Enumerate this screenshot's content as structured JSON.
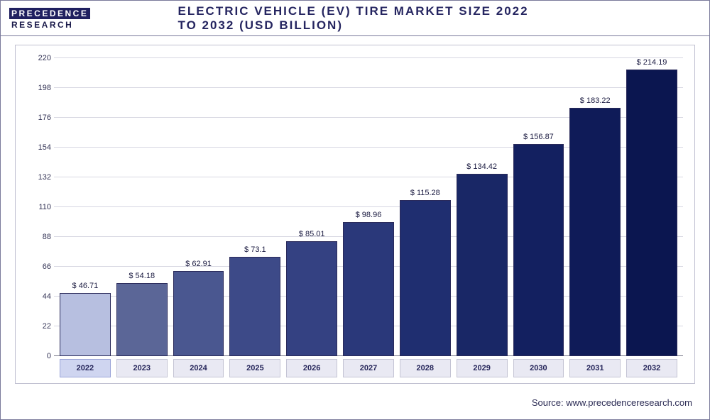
{
  "logo": {
    "line1": "PRECEDENCE",
    "line2": "RESEARCH"
  },
  "title": "ELECTRIC VEHICLE (EV) TIRE MARKET SIZE 2022 TO 2032 (USD BILLION)",
  "source": "Source: www.precedenceresearch.com",
  "chart": {
    "type": "bar",
    "ylim": [
      0,
      220
    ],
    "ytick_step": 22,
    "yticks": [
      0,
      22,
      44,
      66,
      88,
      110,
      132,
      154,
      176,
      198,
      220
    ],
    "grid_color": "#d7d7e2",
    "background_color": "#ffffff",
    "label_fontsize": 11,
    "title_fontsize": 17,
    "bar_border_color": "#2a2a5a",
    "categories": [
      "2022",
      "2023",
      "2024",
      "2025",
      "2026",
      "2027",
      "2028",
      "2029",
      "2030",
      "2031",
      "2032"
    ],
    "value_labels": [
      "$ 46.71",
      "$ 54.18",
      "$ 62.91",
      "$ 73.1",
      "$ 85.01",
      "$ 98.96",
      "$ 115.28",
      "$ 134.42",
      "$ 156.87",
      "$ 183.22",
      "$ 214.19"
    ],
    "values": [
      46.71,
      54.18,
      62.91,
      73.1,
      85.01,
      98.96,
      115.28,
      134.42,
      156.87,
      183.22,
      214.19
    ],
    "bar_colors": [
      "#b7bfe0",
      "#5b6697",
      "#4a5790",
      "#3d4a88",
      "#344182",
      "#2a387a",
      "#1f2e70",
      "#192766",
      "#132060",
      "#0f1b58",
      "#0b1650"
    ],
    "highlight_index": 0
  }
}
